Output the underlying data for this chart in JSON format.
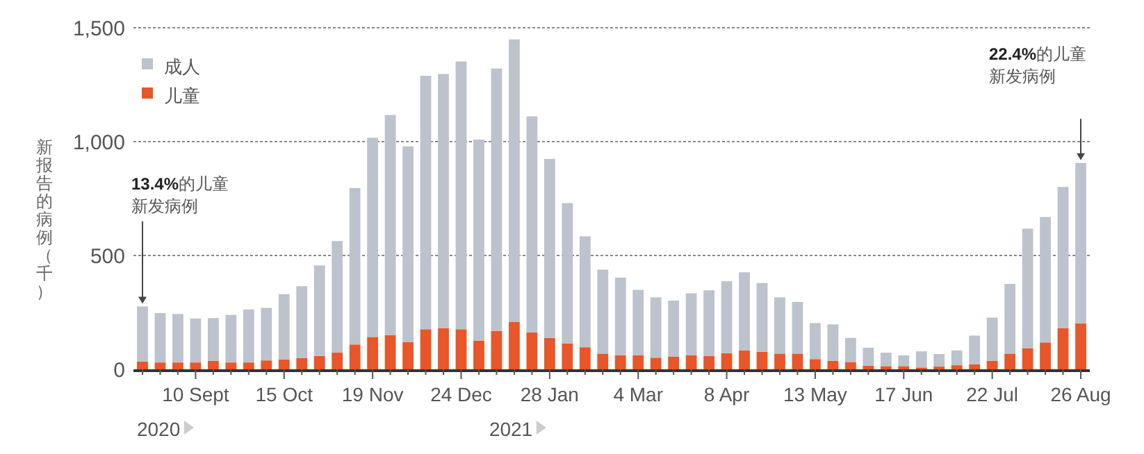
{
  "chart_data": {
    "type": "bar",
    "stacked": true,
    "ylabel": "新报告的病例（千）",
    "legend": "top left",
    "grid": "y",
    "categories": [
      null,
      null,
      null,
      "10 Sept",
      null,
      null,
      null,
      null,
      "15 Oct",
      null,
      null,
      null,
      null,
      "19 Nov",
      null,
      null,
      null,
      null,
      "24 Dec",
      null,
      null,
      null,
      null,
      "28 Jan",
      null,
      null,
      null,
      null,
      "4 Mar",
      null,
      null,
      null,
      null,
      "8 Apr",
      null,
      null,
      null,
      null,
      "13 May",
      null,
      null,
      null,
      null,
      "17 Jun",
      null,
      null,
      null,
      null,
      "22 Jul",
      null,
      null,
      null,
      null,
      "26 Aug"
    ],
    "series": [
      {
        "name": "儿童",
        "color": "#e8562a",
        "values": [
          34,
          30,
          30,
          30,
          37,
          30,
          30,
          39,
          43,
          49,
          59,
          73,
          109,
          142,
          150,
          120,
          176,
          180,
          176,
          126,
          168,
          209,
          162,
          138,
          114,
          97,
          69,
          61,
          61,
          51,
          55,
          61,
          59,
          71,
          83,
          77,
          69,
          69,
          45,
          37,
          32,
          16,
          14,
          14,
          8,
          12,
          18,
          22,
          37,
          69,
          93,
          118,
          180,
          201
        ]
      },
      {
        "name": "成人",
        "color": "#bcc3cc",
        "values": [
          242,
          217,
          213,
          193,
          188,
          209,
          233,
          231,
          287,
          316,
          397,
          490,
          687,
          875,
          967,
          859,
          1113,
          1117,
          1176,
          883,
          1153,
          1240,
          949,
          786,
          616,
          487,
          369,
          342,
          288,
          265,
          247,
          273,
          288,
          316,
          343,
          302,
          247,
          227,
          158,
          160,
          106,
          79,
          59,
          47,
          71,
          55,
          65,
          126,
          190,
          306,
          525,
          551,
          621,
          705
        ]
      }
    ],
    "ylim": [
      0,
      1500
    ],
    "yticks": [
      0,
      500,
      {
        "value": 1000,
        "label": "1,000"
      },
      {
        "value": 1500,
        "label": "1,500"
      }
    ],
    "annotations": [
      "13.4%的儿童",
      "新发病例",
      "22.4%的儿童",
      "新发病例",
      "2020",
      "2021"
    ]
  }
}
